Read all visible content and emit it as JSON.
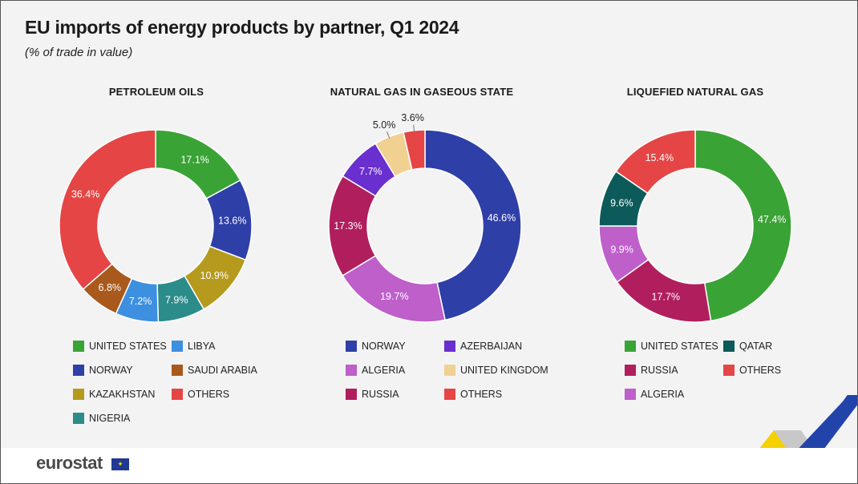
{
  "header": {
    "title": "EU imports of energy products by partner, Q1 2024",
    "subtitle": "(% of trade in value)"
  },
  "footer": {
    "logo_text": "eurostat"
  },
  "colors": {
    "united_states": "#3aa335",
    "norway": "#2e3fa8",
    "kazakhstan": "#b59a1d",
    "nigeria": "#2b8c8a",
    "libya": "#3d8fe0",
    "saudi_arabia": "#a8591b",
    "others": "#e54545",
    "azerbaijan": "#6a2fcf",
    "algeria": "#be5fca",
    "russia": "#b11e5d",
    "united_kingdom": "#f1d191",
    "qatar": "#0d5a5a"
  },
  "chart_data": [
    {
      "type": "donut",
      "title": "PETROLEUM OILS",
      "slices": [
        {
          "name": "UNITED STATES",
          "value": 17.1,
          "label": "17.1%",
          "color": "#3aa335"
        },
        {
          "name": "NORWAY",
          "value": 13.6,
          "label": "13.6%",
          "color": "#2e3fa8"
        },
        {
          "name": "KAZAKHSTAN",
          "value": 10.9,
          "label": "10.9%",
          "color": "#b59a1d"
        },
        {
          "name": "NIGERIA",
          "value": 7.9,
          "label": "7.9%",
          "color": "#2b8c8a"
        },
        {
          "name": "LIBYA",
          "value": 7.2,
          "label": "7.2%",
          "color": "#3d8fe0"
        },
        {
          "name": "SAUDI ARABIA",
          "value": 6.8,
          "label": "6.8%",
          "color": "#a8591b"
        },
        {
          "name": "OTHERS",
          "value": 36.4,
          "label": "36.4%",
          "color": "#e54545"
        }
      ],
      "legend": [
        {
          "name": "UNITED STATES",
          "color": "#3aa335"
        },
        {
          "name": "LIBYA",
          "color": "#3d8fe0"
        },
        {
          "name": "NORWAY",
          "color": "#2e3fa8"
        },
        {
          "name": "SAUDI ARABIA",
          "color": "#a8591b"
        },
        {
          "name": "KAZAKHSTAN",
          "color": "#b59a1d"
        },
        {
          "name": "OTHERS",
          "color": "#e54545"
        },
        {
          "name": "NIGERIA",
          "color": "#2b8c8a"
        }
      ]
    },
    {
      "type": "donut",
      "title": "NATURAL GAS IN GASEOUS STATE",
      "slices": [
        {
          "name": "NORWAY",
          "value": 46.6,
          "label": "46.6%",
          "color": "#2e3fa8"
        },
        {
          "name": "ALGERIA",
          "value": 19.7,
          "label": "19.7%",
          "color": "#be5fca"
        },
        {
          "name": "RUSSIA",
          "value": 17.3,
          "label": "17.3%",
          "color": "#b11e5d"
        },
        {
          "name": "AZERBAIJAN",
          "value": 7.7,
          "label": "7.7%",
          "color": "#6a2fcf"
        },
        {
          "name": "UNITED KINGDOM",
          "value": 5.0,
          "label": "5.0%",
          "color": "#f1d191"
        },
        {
          "name": "OTHERS",
          "value": 3.6,
          "label": "3.6%",
          "color": "#e54545"
        }
      ],
      "legend": [
        {
          "name": "NORWAY",
          "color": "#2e3fa8"
        },
        {
          "name": "AZERBAIJAN",
          "color": "#6a2fcf"
        },
        {
          "name": "ALGERIA",
          "color": "#be5fca"
        },
        {
          "name": "UNITED KINGDOM",
          "color": "#f1d191"
        },
        {
          "name": "RUSSIA",
          "color": "#b11e5d"
        },
        {
          "name": "OTHERS",
          "color": "#e54545"
        }
      ]
    },
    {
      "type": "donut",
      "title": "LIQUEFIED NATURAL GAS",
      "slices": [
        {
          "name": "UNITED STATES",
          "value": 47.4,
          "label": "47.4%",
          "color": "#3aa335"
        },
        {
          "name": "RUSSIA",
          "value": 17.7,
          "label": "17.7%",
          "color": "#b11e5d"
        },
        {
          "name": "ALGERIA",
          "value": 9.9,
          "label": "9.9%",
          "color": "#be5fca"
        },
        {
          "name": "QATAR",
          "value": 9.6,
          "label": "9.6%",
          "color": "#0d5a5a"
        },
        {
          "name": "OTHERS",
          "value": 15.4,
          "label": "15.4%",
          "color": "#e54545"
        }
      ],
      "legend": [
        {
          "name": "UNITED STATES",
          "color": "#3aa335"
        },
        {
          "name": "QATAR",
          "color": "#0d5a5a"
        },
        {
          "name": "RUSSIA",
          "color": "#b11e5d"
        },
        {
          "name": "OTHERS",
          "color": "#e54545"
        },
        {
          "name": "ALGERIA",
          "color": "#be5fca"
        }
      ]
    }
  ]
}
